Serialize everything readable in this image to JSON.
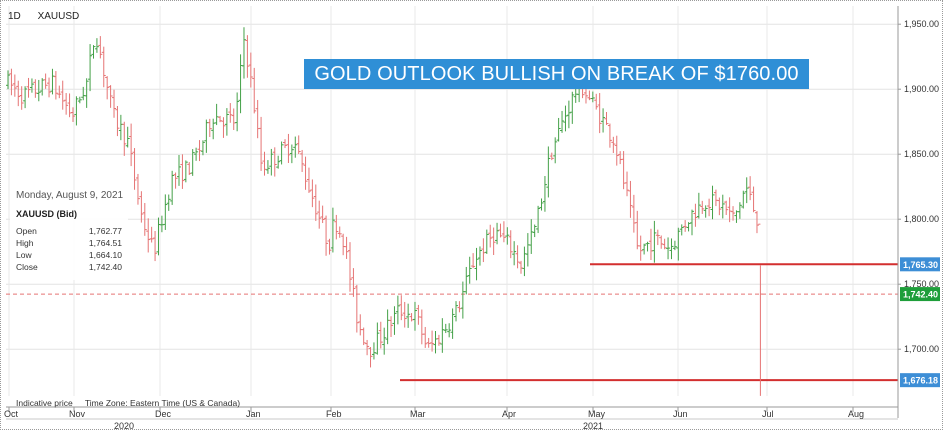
{
  "header": {
    "interval": "1D",
    "symbol": "XAUUSD"
  },
  "banner": {
    "text": "GOLD OUTLOOK BULLISH ON BREAK OF $1760.00"
  },
  "ohlc_box": {
    "date": "Monday, August 9, 2021",
    "instrument": "XAUUSD (Bid)",
    "rows": [
      {
        "label": "Open",
        "value": "1,762.77"
      },
      {
        "label": "High",
        "value": "1,764.51"
      },
      {
        "label": "Low",
        "value": "1,664.10"
      },
      {
        "label": "Close",
        "value": "1,742.40"
      }
    ]
  },
  "footer": {
    "indicative": "Indicative price",
    "timezone": "Time Zone: Eastern Time (US & Canada)"
  },
  "colors": {
    "up": "#43a047",
    "down": "#e57373",
    "support": "#d32f2f",
    "badge_blue": "#3d8ed6",
    "badge_green": "#1e9e3a",
    "close_dash": "#e57373",
    "banner": "#2f8fd6"
  },
  "chart_data": {
    "type": "ohlc",
    "ylim": [
      1664,
      1964
    ],
    "y_ticks": [
      1700,
      1750,
      1800,
      1850,
      1900,
      1950
    ],
    "y_tick_labels": [
      "1,700.00",
      "1,750.00",
      "1,800.00",
      "1,850.00",
      "1,900.00",
      "1,950.00"
    ],
    "x_month_labels": [
      "Oct",
      "Nov",
      "Dec",
      "Jan",
      "Feb",
      "Mar",
      "Apr",
      "May",
      "Jun",
      "Jul",
      "Aug"
    ],
    "x_year_labels": [
      "2020",
      "2021"
    ],
    "horizontal_levels": [
      {
        "value": 1765.3,
        "label": "1,765.30",
        "kind": "resistance"
      },
      {
        "value": 1676.18,
        "label": "1,676.18",
        "kind": "support"
      }
    ],
    "last_close": {
      "value": 1742.4,
      "label": "1,742.40"
    },
    "bar_count": 221,
    "path_anchors": [
      [
        0,
        1905
      ],
      [
        5,
        1895
      ],
      [
        15,
        1905
      ],
      [
        22,
        1880
      ],
      [
        27,
        1905
      ],
      [
        30,
        1945
      ],
      [
        36,
        1880
      ],
      [
        41,
        1860
      ],
      [
        46,
        1800
      ],
      [
        50,
        1775
      ],
      [
        56,
        1830
      ],
      [
        62,
        1840
      ],
      [
        66,
        1855
      ],
      [
        70,
        1880
      ],
      [
        78,
        1875
      ],
      [
        81,
        1940
      ],
      [
        84,
        1895
      ],
      [
        87,
        1840
      ],
      [
        93,
        1850
      ],
      [
        98,
        1860
      ],
      [
        104,
        1820
      ],
      [
        110,
        1780
      ],
      [
        112,
        1800
      ],
      [
        115,
        1785
      ],
      [
        120,
        1720
      ],
      [
        124,
        1700
      ],
      [
        128,
        1710
      ],
      [
        134,
        1730
      ],
      [
        140,
        1725
      ],
      [
        144,
        1700
      ],
      [
        148,
        1710
      ],
      [
        154,
        1730
      ],
      [
        160,
        1770
      ],
      [
        167,
        1790
      ],
      [
        172,
        1780
      ],
      [
        176,
        1765
      ],
      [
        181,
        1795
      ],
      [
        186,
        1850
      ],
      [
        191,
        1880
      ],
      [
        196,
        1905
      ],
      [
        203,
        1880
      ],
      [
        208,
        1860
      ],
      [
        212,
        1820
      ],
      [
        216,
        1775
      ],
      [
        222,
        1785
      ],
      [
        227,
        1778
      ],
      [
        233,
        1800
      ],
      [
        239,
        1815
      ],
      [
        245,
        1810
      ],
      [
        249,
        1800
      ],
      [
        253,
        1825
      ],
      [
        257,
        1800
      ],
      [
        258,
        1742
      ]
    ]
  }
}
